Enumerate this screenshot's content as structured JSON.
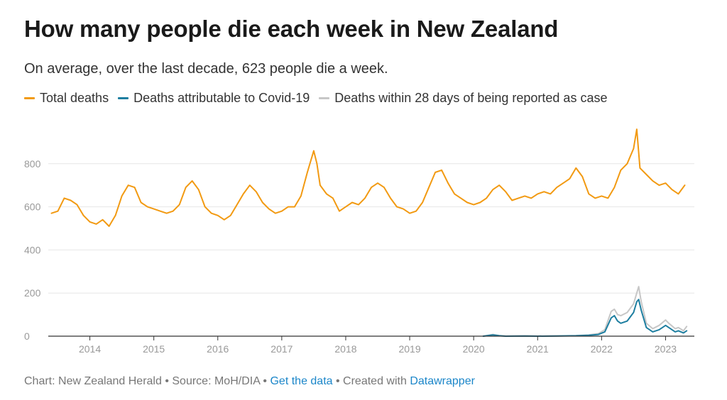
{
  "colors": {
    "total": "#f29a12",
    "covid": "#1d7ea0",
    "reported": "#c7c7c7",
    "grid": "#e6e6e6",
    "axis": "#333333"
  },
  "footer": {
    "chart_credit": "Chart: New Zealand Herald",
    "sep1": " • ",
    "source": "Source: MoH/DIA",
    "sep2": " • ",
    "data_link": "Get the data",
    "sep3": " • Created with ",
    "dw_link": "Datawrapper"
  },
  "chart_data": {
    "type": "line",
    "title": "How many people die each week in New Zealand",
    "subtitle": "On average, over the last decade, 623 people die a week.",
    "xlabel": "",
    "ylabel": "",
    "ylim": [
      0,
      1000
    ],
    "yticks": [
      0,
      200,
      400,
      600,
      800
    ],
    "xticks": [
      "2014",
      "2015",
      "2016",
      "2017",
      "2018",
      "2019",
      "2020",
      "2021",
      "2022",
      "2023"
    ],
    "x_unit": "year",
    "grid": true,
    "legend_position": "top-left",
    "series": [
      {
        "name": "Total deaths",
        "color": "#f29a12",
        "x": [
          2013.4,
          2013.5,
          2013.6,
          2013.7,
          2013.8,
          2013.9,
          2014.0,
          2014.1,
          2014.2,
          2014.3,
          2014.4,
          2014.5,
          2014.6,
          2014.7,
          2014.8,
          2014.9,
          2015.0,
          2015.1,
          2015.2,
          2015.3,
          2015.4,
          2015.5,
          2015.6,
          2015.7,
          2015.8,
          2015.9,
          2016.0,
          2016.1,
          2016.2,
          2016.3,
          2016.4,
          2016.5,
          2016.6,
          2016.7,
          2016.8,
          2016.9,
          2017.0,
          2017.1,
          2017.2,
          2017.3,
          2017.4,
          2017.5,
          2017.55,
          2017.6,
          2017.7,
          2017.8,
          2017.9,
          2018.0,
          2018.1,
          2018.2,
          2018.3,
          2018.4,
          2018.5,
          2018.6,
          2018.7,
          2018.8,
          2018.9,
          2019.0,
          2019.1,
          2019.2,
          2019.3,
          2019.4,
          2019.5,
          2019.6,
          2019.7,
          2019.8,
          2019.9,
          2020.0,
          2020.1,
          2020.2,
          2020.3,
          2020.4,
          2020.5,
          2020.6,
          2020.7,
          2020.8,
          2020.9,
          2021.0,
          2021.1,
          2021.2,
          2021.3,
          2021.4,
          2021.5,
          2021.6,
          2021.7,
          2021.8,
          2021.9,
          2022.0,
          2022.1,
          2022.2,
          2022.3,
          2022.4,
          2022.5,
          2022.55,
          2022.6,
          2022.7,
          2022.8,
          2022.9,
          2023.0,
          2023.1,
          2023.2,
          2023.3
        ],
        "values": [
          570,
          580,
          640,
          630,
          610,
          560,
          530,
          520,
          540,
          510,
          560,
          650,
          700,
          690,
          620,
          600,
          590,
          580,
          570,
          580,
          610,
          690,
          720,
          680,
          600,
          570,
          560,
          540,
          560,
          610,
          660,
          700,
          670,
          620,
          590,
          570,
          580,
          600,
          600,
          650,
          760,
          860,
          800,
          700,
          660,
          640,
          580,
          600,
          620,
          610,
          640,
          690,
          710,
          690,
          640,
          600,
          590,
          570,
          580,
          620,
          690,
          760,
          770,
          710,
          660,
          640,
          620,
          610,
          620,
          640,
          680,
          700,
          670,
          630,
          640,
          650,
          640,
          660,
          670,
          660,
          690,
          710,
          730,
          780,
          740,
          660,
          640,
          650,
          640,
          690,
          770,
          800,
          870,
          960,
          780,
          750,
          720,
          700,
          710,
          680,
          660,
          700
        ]
      },
      {
        "name": "Deaths attributable to Covid-19",
        "color": "#1d7ea0",
        "x": [
          2020.15,
          2020.3,
          2020.4,
          2020.5,
          2020.8,
          2021.0,
          2021.3,
          2021.6,
          2021.8,
          2021.95,
          2022.05,
          2022.15,
          2022.2,
          2022.25,
          2022.3,
          2022.4,
          2022.45,
          2022.5,
          2022.55,
          2022.58,
          2022.62,
          2022.7,
          2022.8,
          2022.9,
          2023.0,
          2023.05,
          2023.15,
          2023.2,
          2023.28,
          2023.33
        ],
        "values": [
          0,
          6,
          2,
          0,
          1,
          0,
          1,
          2,
          4,
          8,
          20,
          85,
          95,
          70,
          60,
          70,
          90,
          110,
          160,
          170,
          120,
          40,
          20,
          30,
          50,
          40,
          20,
          25,
          15,
          25
        ]
      },
      {
        "name": "Deaths within 28 days of being reported as case",
        "color": "#c7c7c7",
        "x": [
          2020.15,
          2020.3,
          2020.4,
          2020.5,
          2020.8,
          2021.0,
          2021.3,
          2021.6,
          2021.8,
          2021.95,
          2022.05,
          2022.15,
          2022.2,
          2022.25,
          2022.3,
          2022.4,
          2022.45,
          2022.5,
          2022.55,
          2022.58,
          2022.62,
          2022.7,
          2022.8,
          2022.9,
          2023.0,
          2023.05,
          2023.15,
          2023.2,
          2023.28,
          2023.33
        ],
        "values": [
          0,
          8,
          3,
          0,
          1,
          0,
          1,
          3,
          6,
          12,
          30,
          115,
          125,
          100,
          95,
          110,
          130,
          150,
          200,
          230,
          160,
          60,
          35,
          50,
          75,
          60,
          35,
          40,
          25,
          45
        ]
      }
    ]
  }
}
